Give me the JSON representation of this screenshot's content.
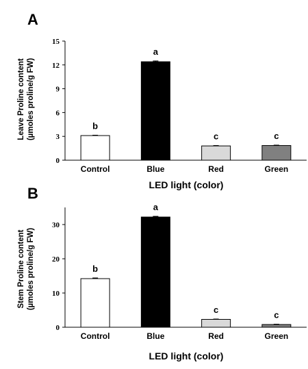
{
  "chart_data": [
    {
      "panel": "A",
      "type": "bar",
      "categories": [
        "Control",
        "Blue",
        "Red",
        "Green"
      ],
      "values": [
        3.1,
        12.4,
        1.8,
        1.85
      ],
      "errors": [
        0.05,
        0.1,
        0.05,
        0.05
      ],
      "significance": [
        "b",
        "a",
        "c",
        "c"
      ],
      "colors": [
        "#ffffff",
        "#000000",
        "#d9d9d9",
        "#808080"
      ],
      "yticks": [
        0,
        3,
        6,
        9,
        12,
        15
      ],
      "ylim": [
        0,
        15
      ],
      "ylabel_line1": "Leave Proline content",
      "ylabel_line2": "(µmoles proline/g FW)",
      "xlabel": "LED light (color)",
      "grid": false
    },
    {
      "panel": "B",
      "type": "bar",
      "categories": [
        "Control",
        "Blue",
        "Red",
        "Green"
      ],
      "values": [
        14.2,
        32.2,
        2.3,
        0.8
      ],
      "errors": [
        0.2,
        0.2,
        0.1,
        0.1
      ],
      "significance": [
        "b",
        "a",
        "c",
        "c"
      ],
      "colors": [
        "#ffffff",
        "#000000",
        "#d9d9d9",
        "#808080"
      ],
      "yticks": [
        0,
        10,
        20,
        30
      ],
      "ylim": [
        0,
        35
      ],
      "ylabel_line1": "Stem Proline content",
      "ylabel_line2": "(µmoles proline/g FW)",
      "xlabel": "LED light (color)",
      "grid": false
    }
  ]
}
